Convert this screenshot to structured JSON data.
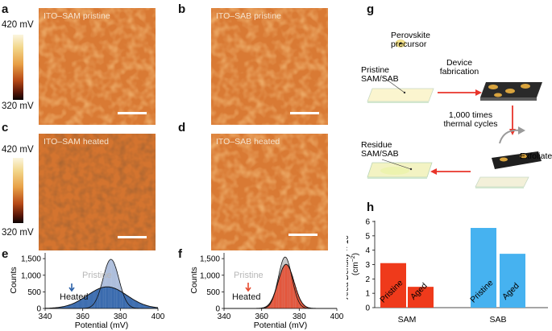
{
  "panels": {
    "a": {
      "letter": "a",
      "title": "ITO–SAM pristine"
    },
    "b": {
      "letter": "b",
      "title": "ITO–SAB pristine"
    },
    "c": {
      "letter": "c",
      "title": "ITO–SAM heated"
    },
    "d": {
      "letter": "d",
      "title": "ITO–SAB heated"
    },
    "e": {
      "letter": "e"
    },
    "f": {
      "letter": "f"
    },
    "g": {
      "letter": "g"
    },
    "h": {
      "letter": "h"
    }
  },
  "colorbar": {
    "top": "420 mV",
    "bottom": "320 mV"
  },
  "schematic": {
    "precursor": "Perovskite\nprecursor",
    "pristine": "Pristine\nSAM/SAB",
    "fabrication": "Device\nfabrication",
    "cycles": "1,000 times\nthermal cycles",
    "exfoliate": "Exfoliate",
    "residue": "Residue\nSAM/SAB"
  },
  "colors": {
    "sam_heated": "#2d62a8",
    "sam_pristine": "#aebfdc",
    "sab_heated": "#e64a2e",
    "sab_pristine": "#c9c9c9",
    "bar_sam": "#ef3a1b",
    "bar_sab": "#46b2f0"
  },
  "chart_data": [
    {
      "id": "e",
      "type": "histogram",
      "xlabel": "Potential (mV)",
      "ylabel": "Counts",
      "xlim": [
        340,
        400
      ],
      "ylim": [
        0,
        1600
      ],
      "xticks": [
        340,
        360,
        380,
        400
      ],
      "yticks": [
        0,
        500,
        1000,
        1500
      ],
      "ytick_labels": [
        "0",
        "500",
        "1,000",
        "1,500"
      ],
      "legend": {
        "pristine": "Pristine",
        "heated": "Heated"
      },
      "series": [
        {
          "name": "Pristine",
          "mean": 375,
          "sd": 4.2,
          "peak": 1480
        },
        {
          "name": "Heated",
          "mean": 373,
          "sd": 10.5,
          "peak": 650
        }
      ]
    },
    {
      "id": "f",
      "type": "histogram",
      "xlabel": "Potential (mV)",
      "ylabel": "Counts",
      "xlim": [
        340,
        400
      ],
      "ylim": [
        0,
        1600
      ],
      "xticks": [
        340,
        360,
        380,
        400
      ],
      "yticks": [
        0,
        500,
        1000,
        1500
      ],
      "ytick_labels": [
        "0",
        "500",
        "1,000",
        "1,500"
      ],
      "legend": {
        "pristine": "Pristine",
        "heated": "Heated"
      },
      "series": [
        {
          "name": "Pristine",
          "mean": 372.5,
          "sd": 3.6,
          "peak": 1550
        },
        {
          "name": "Heated",
          "mean": 373,
          "sd": 4.2,
          "peak": 1330
        }
      ]
    },
    {
      "id": "h",
      "type": "bar",
      "ylabel": "Area Density × 10",
      "ylabel_sup": "13",
      "ylabel_unit": "(cm",
      "ylabel_unit_sup": "−2",
      "ylabel_unit_end": ")",
      "ylim": [
        0,
        6
      ],
      "yticks": [
        0,
        1,
        2,
        3,
        4,
        5,
        6
      ],
      "groups": [
        "SAM",
        "SAB"
      ],
      "bars": [
        {
          "group": "SAM",
          "label": "Pristine",
          "value": 3.1
        },
        {
          "group": "SAM",
          "label": "Aged",
          "value": 1.45
        },
        {
          "group": "SAB",
          "label": "Pristine",
          "value": 5.55
        },
        {
          "group": "SAB",
          "label": "Aged",
          "value": 3.75
        }
      ]
    }
  ]
}
